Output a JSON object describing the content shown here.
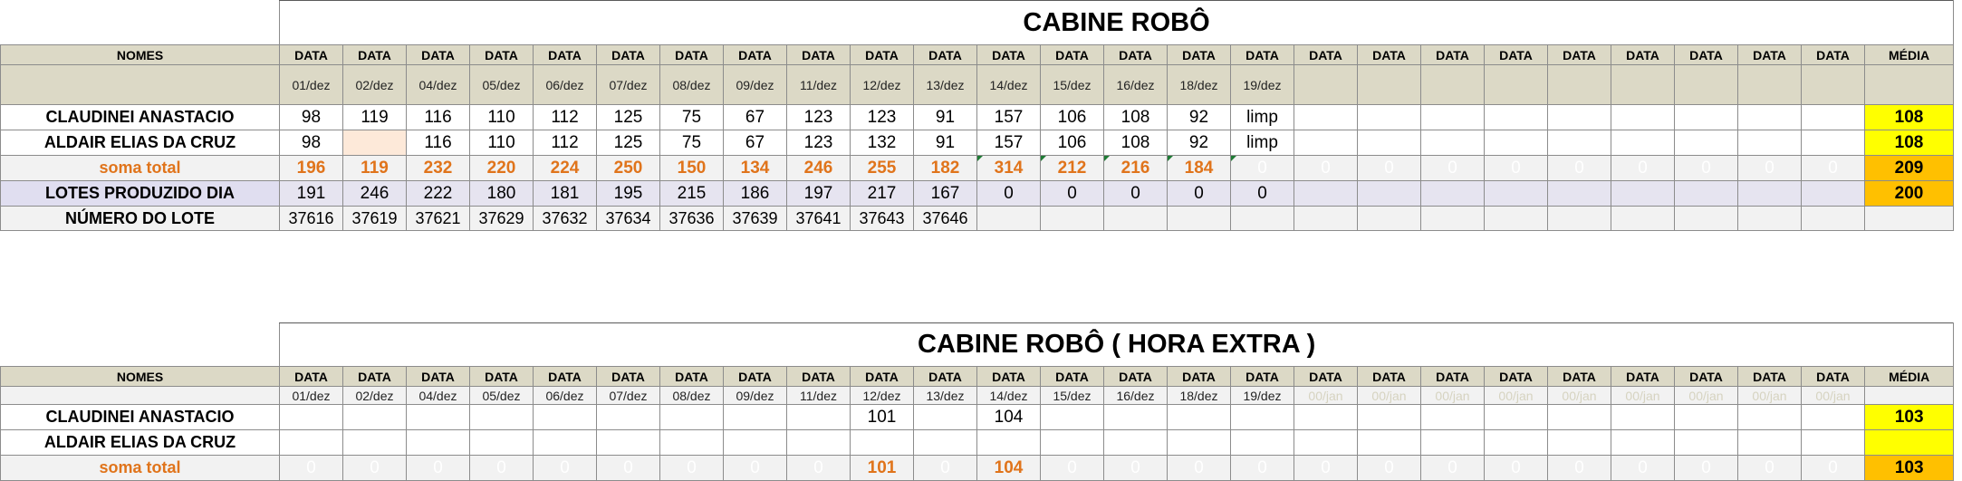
{
  "table1": {
    "title": "CABINE ROBÔ",
    "header": {
      "nomes": "NOMES",
      "data_label": "DATA",
      "media": "MÉDIA"
    },
    "dates": [
      "01/dez",
      "02/dez",
      "04/dez",
      "05/dez",
      "06/dez",
      "07/dez",
      "08/dez",
      "09/dez",
      "11/dez",
      "12/dez",
      "13/dez",
      "14/dez",
      "15/dez",
      "16/dez",
      "18/dez",
      "19/dez",
      "",
      "",
      "",
      "",
      "",
      "",
      "",
      "",
      ""
    ],
    "rows": [
      {
        "name": "CLAUDINEI ANASTACIO",
        "values": [
          "98",
          "119",
          "116",
          "110",
          "112",
          "125",
          "75",
          "67",
          "123",
          "123",
          "91",
          "157",
          "106",
          "108",
          "92",
          "limp",
          "",
          "",
          "",
          "",
          "",
          "",
          "",
          "",
          ""
        ],
        "media": "108"
      },
      {
        "name": "ALDAIR ELIAS DA CRUZ",
        "values": [
          "98",
          "",
          "116",
          "110",
          "112",
          "125",
          "75",
          "67",
          "123",
          "132",
          "91",
          "157",
          "106",
          "108",
          "92",
          "limp",
          "",
          "",
          "",
          "",
          "",
          "",
          "",
          "",
          ""
        ],
        "media": "108"
      }
    ],
    "soma": {
      "name": "soma total",
      "values": [
        "196",
        "119",
        "232",
        "220",
        "224",
        "250",
        "150",
        "134",
        "246",
        "255",
        "182",
        "314",
        "212",
        "216",
        "184",
        "0",
        "0",
        "0",
        "0",
        "0",
        "0",
        "0",
        "0",
        "0",
        "0"
      ],
      "media": "209"
    },
    "lotes": {
      "name": "LOTES PRODUZIDO DIA",
      "values": [
        "191",
        "246",
        "222",
        "180",
        "181",
        "195",
        "215",
        "186",
        "197",
        "217",
        "167",
        "0",
        "0",
        "0",
        "0",
        "0",
        "",
        "",
        "",
        "",
        "",
        "",
        "",
        "",
        ""
      ],
      "media": "200"
    },
    "numero": {
      "name": "NÚMERO DO LOTE",
      "values": [
        "37616",
        "37619",
        "37621",
        "37629",
        "37632",
        "37634",
        "37636",
        "37639",
        "37641",
        "37643",
        "37646",
        "",
        "",
        "",
        "",
        "",
        "",
        "",
        "",
        "",
        "",
        "",
        "",
        "",
        ""
      ],
      "media": ""
    }
  },
  "table2": {
    "title": "CABINE ROBÔ ( HORA EXTRA )",
    "header": {
      "nomes": "NOMES",
      "data_label": "DATA",
      "media": "MÉDIA"
    },
    "dates": [
      "01/dez",
      "02/dez",
      "04/dez",
      "05/dez",
      "06/dez",
      "07/dez",
      "08/dez",
      "09/dez",
      "11/dez",
      "12/dez",
      "13/dez",
      "14/dez",
      "15/dez",
      "16/dez",
      "18/dez",
      "19/dez",
      "00/jan",
      "00/jan",
      "00/jan",
      "00/jan",
      "00/jan",
      "00/jan",
      "00/jan",
      "00/jan",
      "00/jan"
    ],
    "rows": [
      {
        "name": "CLAUDINEI ANASTACIO",
        "values": [
          "",
          "",
          "",
          "",
          "",
          "",
          "",
          "",
          "",
          "101",
          "",
          "104",
          "",
          "",
          "",
          "",
          "",
          "",
          "",
          "",
          "",
          "",
          "",
          "",
          ""
        ],
        "media": "103"
      },
      {
        "name": "ALDAIR ELIAS DA CRUZ",
        "values": [
          "",
          "",
          "",
          "",
          "",
          "",
          "",
          "",
          "",
          "",
          "",
          "",
          "",
          "",
          "",
          "",
          "",
          "",
          "",
          "",
          "",
          "",
          "",
          "",
          ""
        ],
        "media": ""
      }
    ],
    "soma": {
      "name": "soma total",
      "values": [
        "0",
        "0",
        "0",
        "0",
        "0",
        "0",
        "0",
        "0",
        "0",
        "101",
        "0",
        "104",
        "0",
        "0",
        "0",
        "0",
        "0",
        "0",
        "0",
        "0",
        "0",
        "0",
        "0",
        "0",
        "0"
      ],
      "media": "103"
    }
  }
}
